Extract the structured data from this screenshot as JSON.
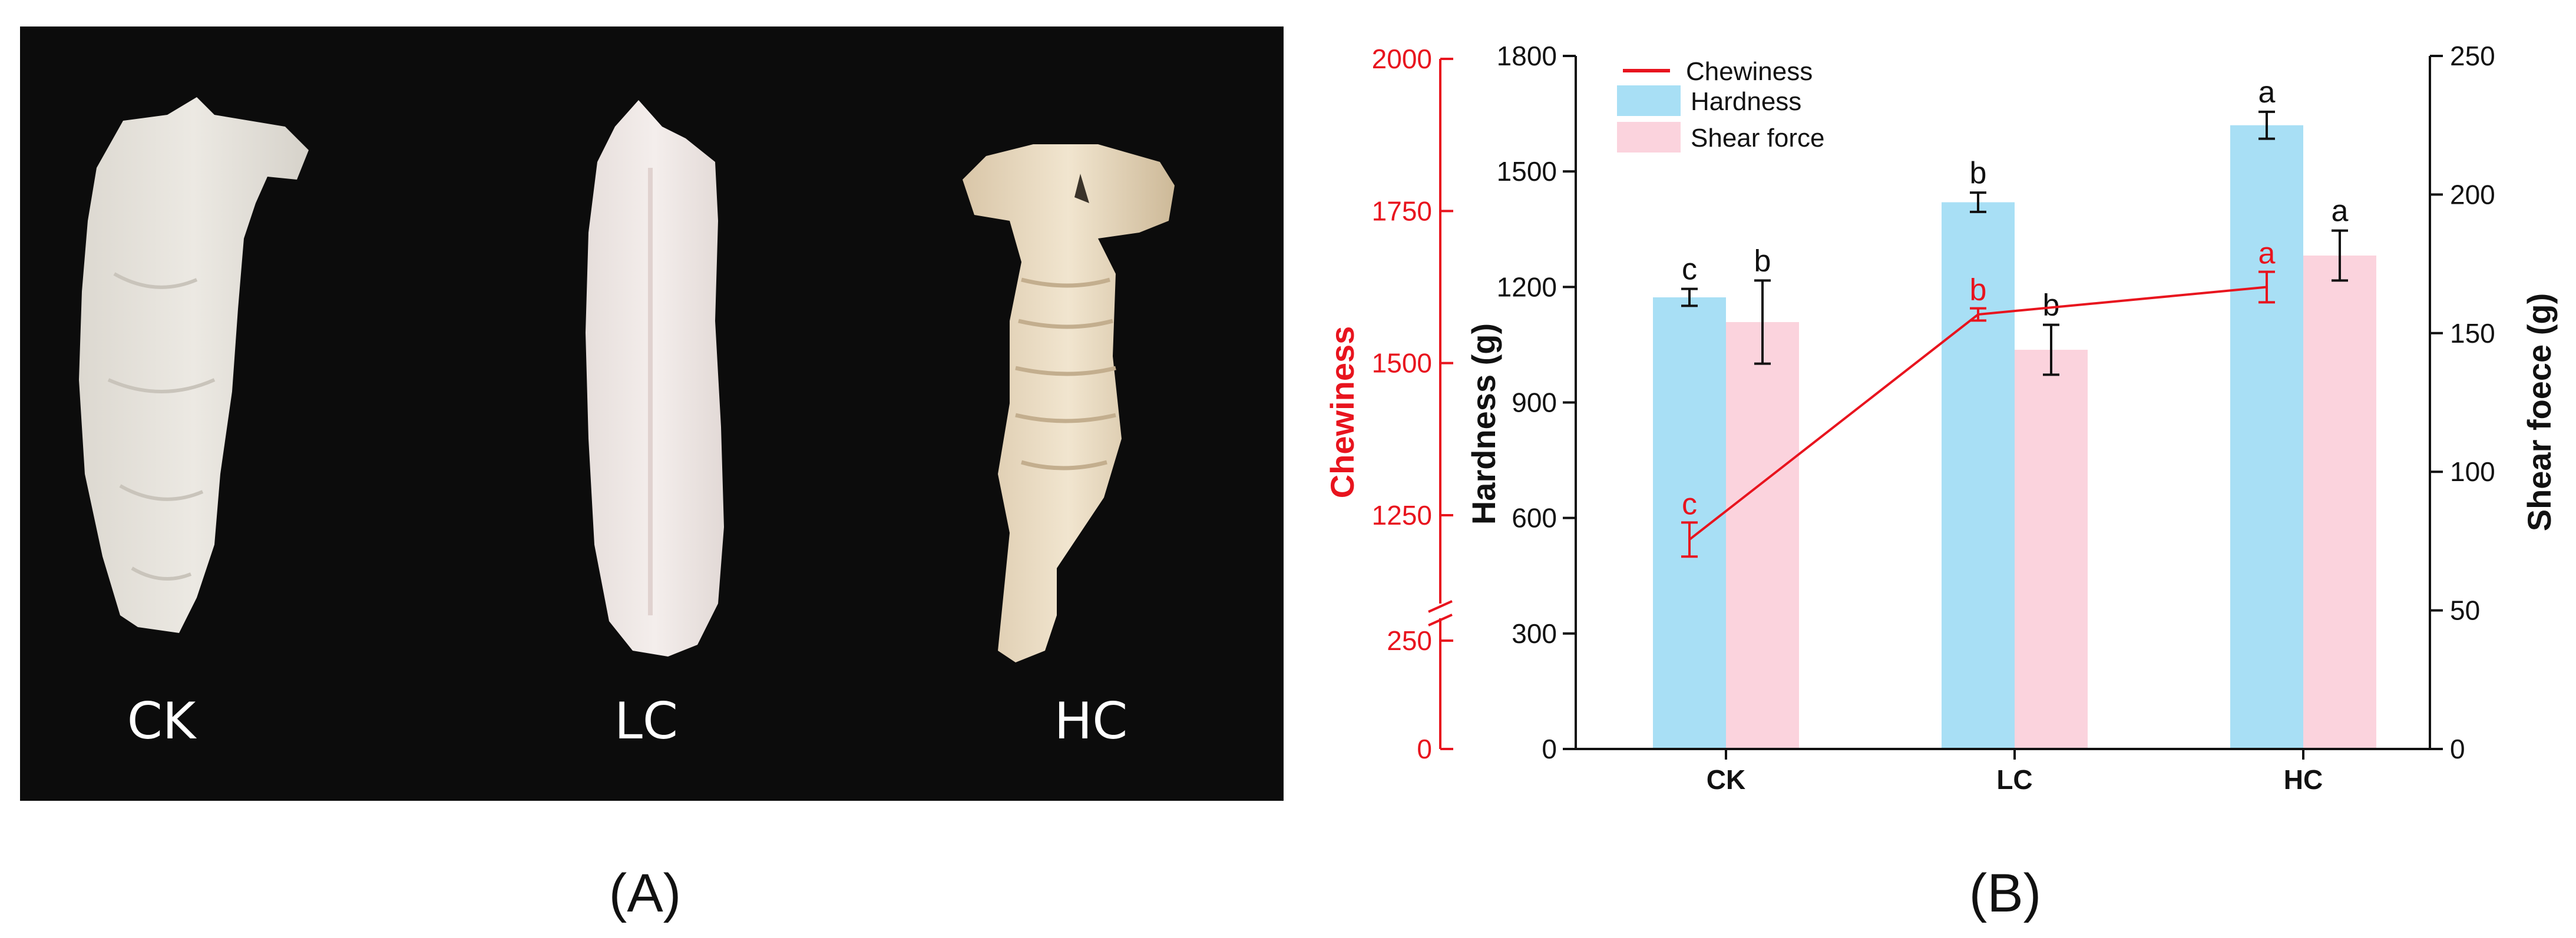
{
  "panel_a": {
    "caption": "(A)",
    "specimens": [
      {
        "label": "CK"
      },
      {
        "label": "LC"
      },
      {
        "label": "HC"
      }
    ]
  },
  "panel_b": {
    "caption": "(B)"
  },
  "colors": {
    "hardness": "#a8dff5",
    "shear_force": "#fbd3dd",
    "chewiness": "#e8141e",
    "axis": "#111111",
    "photo_background": "#0c0c0c"
  },
  "chart_data": {
    "type": "bar",
    "categories": [
      "CK",
      "LC",
      "HC"
    ],
    "legend": {
      "placement": "top-left",
      "entries": [
        "Chewiness",
        "Hardness",
        "Shear force"
      ]
    },
    "axes": {
      "left_red": {
        "label": "Chewiness",
        "ticks": [
          "0",
          "250",
          "1250",
          "1500",
          "1750",
          "2000"
        ],
        "broken": true,
        "segments": [
          {
            "range": [
              0,
              250
            ]
          },
          {
            "range": [
              1250,
              2000
            ]
          }
        ]
      },
      "left": {
        "label": "Hardness (g)",
        "ylim": [
          0,
          1800
        ],
        "ticks": [
          "0",
          "300",
          "600",
          "900",
          "1200",
          "1500",
          "1800"
        ]
      },
      "right": {
        "label": "Shear foece (g)",
        "ylim": [
          0,
          250
        ],
        "ticks": [
          "0",
          "50",
          "100",
          "150",
          "200",
          "250"
        ]
      }
    },
    "series": [
      {
        "name": "Hardness",
        "kind": "bar",
        "axis": "left",
        "values": [
          1173,
          1420,
          1620
        ],
        "errors": [
          22,
          25,
          35
        ],
        "letters": [
          "c",
          "b",
          "a"
        ]
      },
      {
        "name": "Shear force",
        "kind": "bar",
        "axis": "right",
        "values": [
          154,
          144,
          178
        ],
        "errors": [
          15,
          9,
          9
        ],
        "letters": [
          "b",
          "b",
          "a"
        ]
      },
      {
        "name": "Chewiness",
        "kind": "line",
        "axis": "left_red",
        "values": [
          1210,
          1580,
          1625
        ],
        "errors": [
          28,
          10,
          25
        ],
        "letters": [
          "c",
          "b",
          "a"
        ]
      }
    ]
  }
}
